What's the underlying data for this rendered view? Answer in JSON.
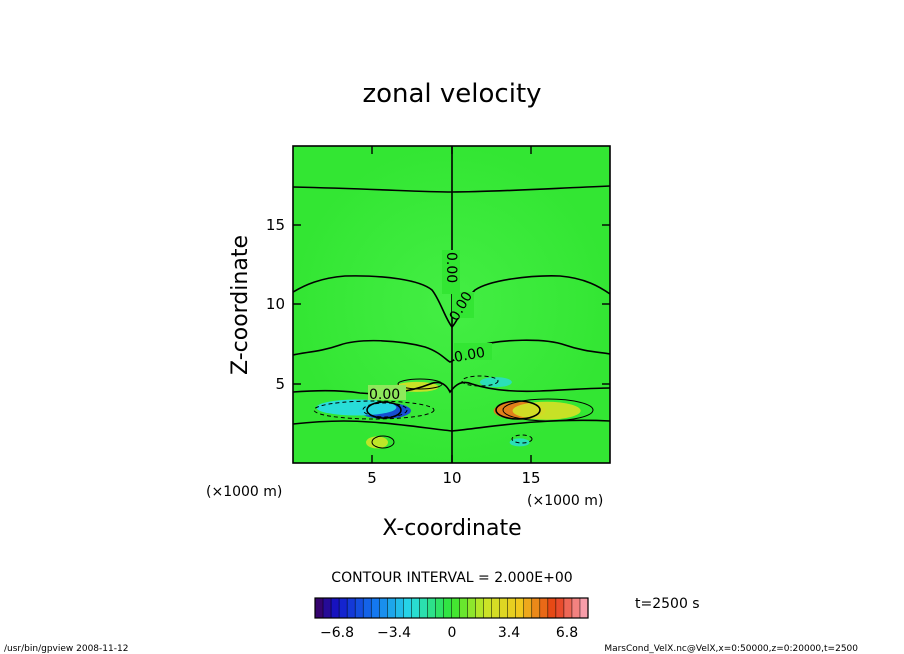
{
  "chart_data": {
    "type": "heatmap",
    "title": "zonal velocity",
    "xlabel": "X-coordinate",
    "ylabel": "Z-coordinate",
    "x_unit": "(×1000 m)",
    "y_unit": "(×1000 m)",
    "xlim": [
      0,
      20
    ],
    "ylim": [
      0,
      20
    ],
    "xticks": [
      "5",
      "10",
      "15"
    ],
    "yticks": [
      "5",
      "10",
      "15"
    ],
    "contour_interval_label": "CONTOUR INTERVAL = 2.000E+00",
    "contour_labels": [
      "0.00",
      "0.00",
      "0.00",
      "0.00",
      "0.00"
    ],
    "colorbar_ticks": [
      "−6.8",
      "−3.4",
      "0",
      "3.4",
      "6.8"
    ],
    "colorbar_range": [
      -8.5,
      8.5
    ],
    "time_label": "t=2500 s",
    "anomalies": [
      {
        "x": 5.8,
        "z": 3.3,
        "value": -6.0
      },
      {
        "x": 4.0,
        "z": 3.5,
        "value": -2.5
      },
      {
        "x": 14.3,
        "z": 3.3,
        "value": 5.5
      },
      {
        "x": 16.0,
        "z": 3.3,
        "value": 2.5
      },
      {
        "x": 7.8,
        "z": 4.8,
        "value": 2.5
      },
      {
        "x": 5.3,
        "z": 1.3,
        "value": 2.0
      },
      {
        "x": 14.3,
        "z": 1.3,
        "value": -2.0
      },
      {
        "x": 12.8,
        "z": 5.1,
        "value": -2.0
      }
    ]
  },
  "footer": {
    "left": "/usr/bin/gpview   2008-11-12",
    "right": "MarsCond_VelX.nc@VelX,x=0:50000,z=0:20000,t=2500"
  },
  "colors": {
    "background_field": "#33e633",
    "negative_strong": "#1f28d9",
    "negative_weak": "#33d6ee",
    "positive_weak": "#e8e033",
    "positive_strong": "#e83a1a"
  }
}
